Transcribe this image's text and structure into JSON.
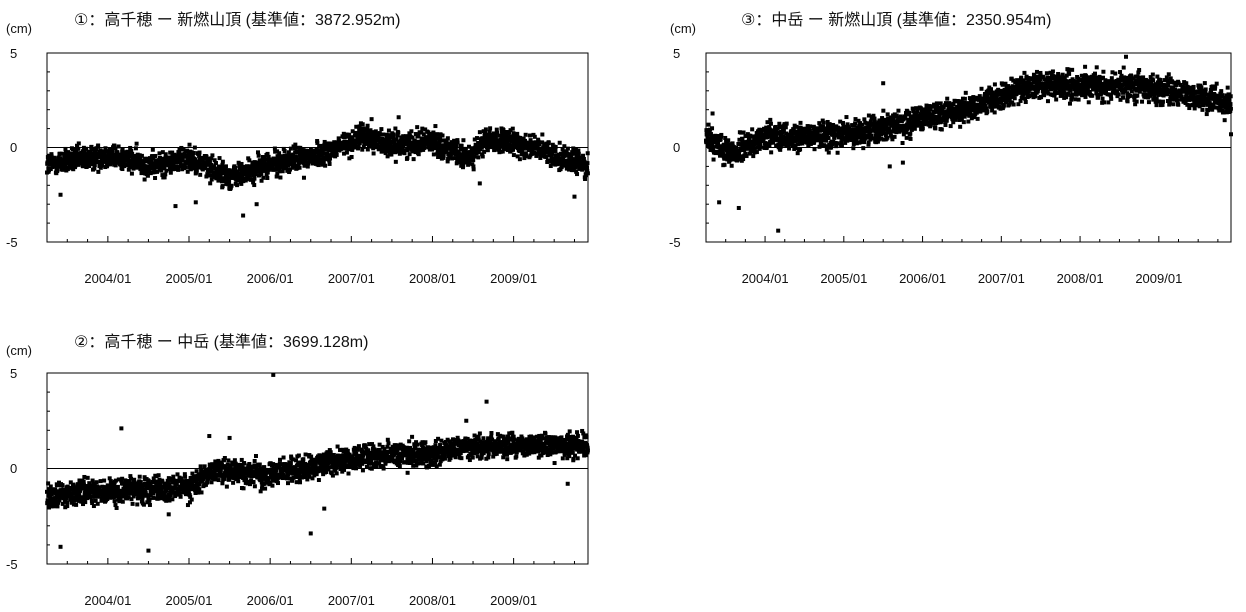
{
  "chart_data": [
    {
      "type": "scatter",
      "title": "①：高千穂 ー 新燃山頂 (基準値：3872.952m)",
      "ylabel": "(cm)",
      "ylim": [
        -5,
        5
      ],
      "yticks": [
        "5",
        "0",
        "-5"
      ],
      "xlim": [
        "2003-04-01",
        "2009-12-01"
      ],
      "xticks": [
        "2004/01",
        "2005/01",
        "2006/01",
        "2007/01",
        "2008/01",
        "2009/01"
      ],
      "zero_line": true,
      "trend": [
        [
          "2003-04-01",
          -0.9
        ],
        [
          "2004-01-01",
          -0.4
        ],
        [
          "2004-08-01",
          -1.0
        ],
        [
          "2005-01-01",
          -0.5
        ],
        [
          "2005-07-01",
          -1.6
        ],
        [
          "2006-01-01",
          -0.9
        ],
        [
          "2006-09-01",
          -0.3
        ],
        [
          "2007-03-01",
          0.6
        ],
        [
          "2007-07-01",
          0.1
        ],
        [
          "2008-01-01",
          0.4
        ],
        [
          "2008-06-01",
          -0.6
        ],
        [
          "2008-09-01",
          0.4
        ],
        [
          "2009-03-01",
          0.1
        ],
        [
          "2009-12-01",
          -1.0
        ]
      ],
      "spread": 0.45,
      "outliers": [
        [
          "2003-06-01",
          -2.5
        ],
        [
          "2004-11-01",
          -3.1
        ],
        [
          "2005-02-01",
          -2.9
        ],
        [
          "2005-09-01",
          -3.6
        ],
        [
          "2005-11-01",
          -3.0
        ],
        [
          "2007-04-01",
          1.5
        ],
        [
          "2007-08-01",
          1.6
        ],
        [
          "2008-08-01",
          -1.9
        ],
        [
          "2009-10-01",
          -2.6
        ],
        [
          "2006-06-01",
          -1.6
        ]
      ]
    },
    {
      "type": "scatter",
      "title": "③：中岳 ー 新燃山頂 (基準値：2350.954m)",
      "ylabel": "(cm)",
      "ylim": [
        -5,
        5
      ],
      "yticks": [
        "5",
        "0",
        "-5"
      ],
      "xlim": [
        "2003-04-01",
        "2009-12-01"
      ],
      "xticks": [
        "2004/01",
        "2005/01",
        "2006/01",
        "2007/01",
        "2008/01",
        "2009/01"
      ],
      "zero_line": true,
      "trend": [
        [
          "2003-04-01",
          0.5
        ],
        [
          "2003-08-01",
          -0.3
        ],
        [
          "2004-01-01",
          0.5
        ],
        [
          "2005-01-01",
          0.6
        ],
        [
          "2006-01-01",
          1.5
        ],
        [
          "2006-09-01",
          2.2
        ],
        [
          "2007-06-01",
          3.3
        ],
        [
          "2008-01-01",
          3.3
        ],
        [
          "2008-10-01",
          3.2
        ],
        [
          "2009-12-01",
          2.4
        ]
      ],
      "spread": 0.5,
      "outliers": [
        [
          "2003-06-01",
          -2.9
        ],
        [
          "2003-09-01",
          -3.2
        ],
        [
          "2004-03-01",
          -4.4
        ],
        [
          "2003-05-01",
          1.8
        ],
        [
          "2005-07-01",
          3.4
        ],
        [
          "2005-08-01",
          -1.0
        ],
        [
          "2005-10-01",
          -0.8
        ],
        [
          "2008-08-01",
          4.8
        ],
        [
          "2009-12-01",
          0.7
        ],
        [
          "2008-10-01",
          4.1
        ]
      ]
    },
    {
      "type": "scatter",
      "title": "②：高千穂 ー 中岳 (基準値：3699.128m)",
      "ylabel": "(cm)",
      "ylim": [
        -5,
        5
      ],
      "yticks": [
        "5",
        "0",
        "-5"
      ],
      "xlim": [
        "2003-04-01",
        "2009-12-01"
      ],
      "xticks": [
        "2004/01",
        "2005/01",
        "2006/01",
        "2007/01",
        "2008/01",
        "2009/01"
      ],
      "zero_line": true,
      "trend": [
        [
          "2003-04-01",
          -1.4
        ],
        [
          "2004-01-01",
          -1.2
        ],
        [
          "2005-01-01",
          -1.0
        ],
        [
          "2005-05-01",
          -0.1
        ],
        [
          "2006-01-01",
          -0.3
        ],
        [
          "2007-01-01",
          0.5
        ],
        [
          "2008-01-01",
          0.8
        ],
        [
          "2008-08-01",
          1.2
        ],
        [
          "2009-12-01",
          1.2
        ]
      ],
      "spread": 0.45,
      "outliers": [
        [
          "2006-01-15",
          4.9
        ],
        [
          "2004-03-01",
          2.1
        ],
        [
          "2003-06-01",
          -4.1
        ],
        [
          "2004-07-01",
          -4.3
        ],
        [
          "2005-04-01",
          1.7
        ],
        [
          "2005-07-01",
          1.6
        ],
        [
          "2006-07-01",
          -3.4
        ],
        [
          "2006-09-01",
          -2.1
        ],
        [
          "2008-09-01",
          3.5
        ],
        [
          "2008-06-01",
          2.5
        ],
        [
          "2004-10-01",
          -2.4
        ],
        [
          "2009-09-01",
          -0.8
        ]
      ]
    }
  ]
}
